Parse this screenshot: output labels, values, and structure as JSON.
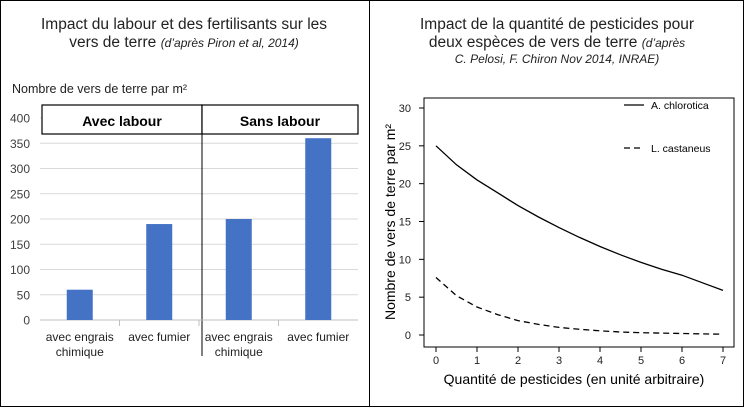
{
  "left_panel": {
    "title_line1": "Impact du labour et des fertilisants sur les",
    "title_line2": "vers de terre",
    "title_source": "(d’après Piron et al, 2014)"
  },
  "right_panel": {
    "title_line1": "Impact de la quantité de pesticides pour",
    "title_line2": "deux espèces de vers de terre",
    "title_source_1": "(d’après",
    "title_source_2": "C. Pelosi, F. Chiron Nov 2014, INRAE)"
  },
  "chart_data": [
    {
      "type": "bar",
      "ylabel": "Nombre de vers de terre par m²",
      "ylim": [
        0,
        400
      ],
      "yticks": [
        0,
        50,
        100,
        150,
        200,
        250,
        300,
        350,
        400
      ],
      "groups": [
        "Avec labour",
        "Sans labour"
      ],
      "categories": [
        {
          "group": "Avec labour",
          "label_lines": [
            "avec engrais",
            "chimique"
          ]
        },
        {
          "group": "Avec labour",
          "label_lines": [
            "avec fumier"
          ]
        },
        {
          "group": "Sans labour",
          "label_lines": [
            "avec engrais",
            "chimique"
          ]
        },
        {
          "group": "Sans labour",
          "label_lines": [
            "avec fumier"
          ]
        }
      ],
      "values": [
        60,
        190,
        200,
        360
      ],
      "bar_color": "#4472C4",
      "grid": true
    },
    {
      "type": "line",
      "xlabel": "Quantité de pesticides (en unité arbitraire)",
      "ylabel": "Nombre de vers de terre par m²",
      "xlim": [
        0,
        7
      ],
      "ylim": [
        0,
        30
      ],
      "xticks": [
        0,
        1,
        2,
        3,
        4,
        5,
        6,
        7
      ],
      "yticks": [
        0,
        5,
        10,
        15,
        20,
        25,
        30
      ],
      "legend_position": "top-right",
      "series": [
        {
          "name": "A. chlorotica",
          "style": "solid",
          "x": [
            0,
            0.5,
            1,
            1.5,
            2,
            2.5,
            3,
            3.5,
            4,
            4.5,
            5,
            5.5,
            6,
            6.5,
            7
          ],
          "y": [
            25,
            22.5,
            20.5,
            18.8,
            17.1,
            15.6,
            14.2,
            12.9,
            11.7,
            10.6,
            9.6,
            8.7,
            7.9,
            6.9,
            5.9
          ]
        },
        {
          "name": "L. castaneus",
          "style": "dashed",
          "x": [
            0,
            0.5,
            1,
            1.5,
            2,
            2.5,
            3,
            3.5,
            4,
            4.5,
            5,
            5.5,
            6,
            6.5,
            7
          ],
          "y": [
            7.6,
            5.2,
            3.7,
            2.7,
            1.9,
            1.4,
            1.0,
            0.75,
            0.55,
            0.4,
            0.3,
            0.25,
            0.2,
            0.15,
            0.1
          ]
        }
      ]
    }
  ]
}
